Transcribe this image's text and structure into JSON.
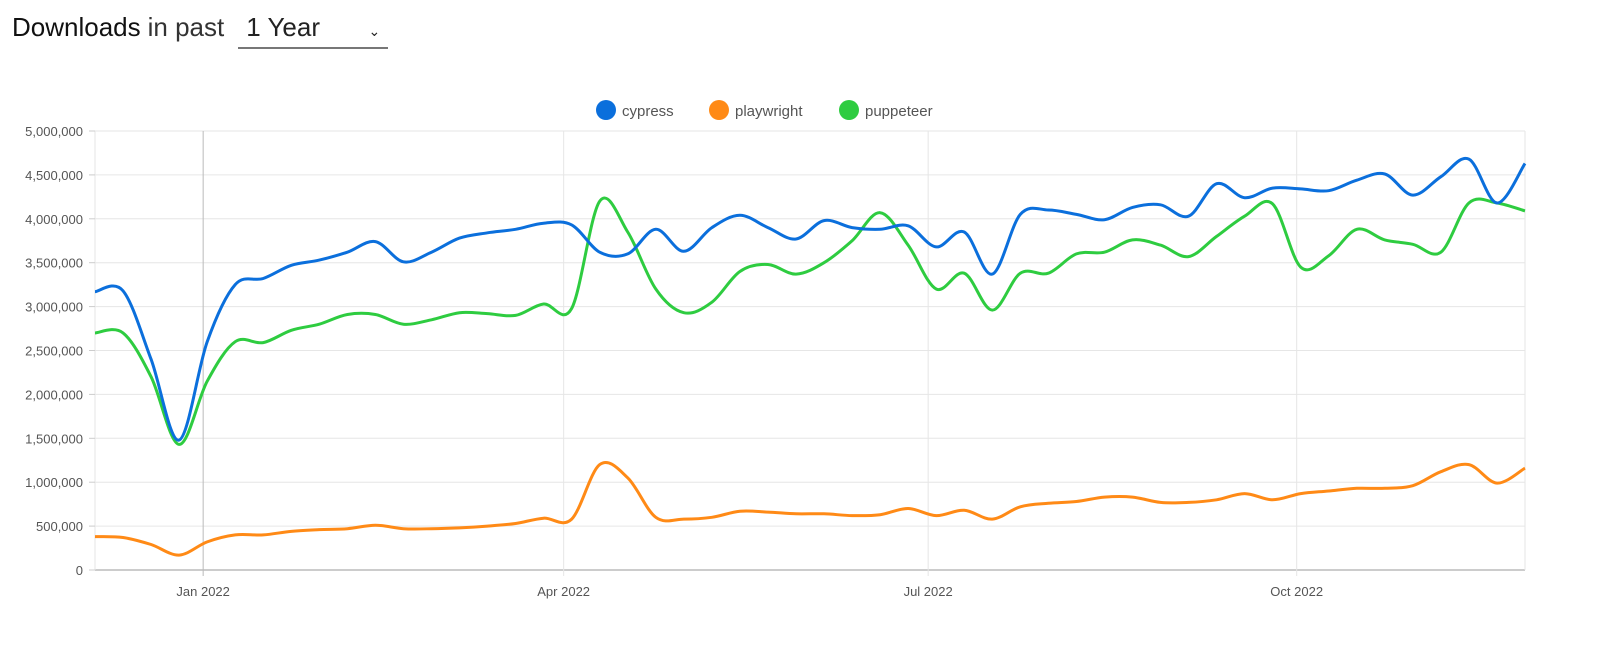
{
  "header": {
    "title": "Downloads",
    "subtitle": "in past",
    "period_selected": "1 Year",
    "chevron_icon": "chevron-down-icon"
  },
  "chart_data": {
    "type": "line",
    "title": "",
    "xlabel": "",
    "ylabel": "",
    "ylim": [
      0,
      5000000
    ],
    "yticks": [
      0,
      500000,
      1000000,
      1500000,
      2000000,
      2500000,
      3000000,
      3500000,
      4000000,
      4500000,
      5000000
    ],
    "ytick_labels": [
      "0",
      "500,000",
      "1,000,000",
      "1,500,000",
      "2,000,000",
      "2,500,000",
      "3,000,000",
      "3,500,000",
      "4,000,000",
      "4,500,000",
      "5,000,000"
    ],
    "xlim": [
      "2021-12-05",
      "2022-11-27"
    ],
    "xticks": [
      "2022-01-01",
      "2022-04-01",
      "2022-07-01",
      "2022-10-01"
    ],
    "xtick_labels": [
      "Jan 2022",
      "Apr 2022",
      "Jul 2022",
      "Oct 2022"
    ],
    "grid": true,
    "legend_position": "top-center",
    "x": [
      "2021-12-05",
      "2021-12-12",
      "2021-12-19",
      "2021-12-26",
      "2022-01-02",
      "2022-01-09",
      "2022-01-16",
      "2022-01-23",
      "2022-01-30",
      "2022-02-06",
      "2022-02-13",
      "2022-02-20",
      "2022-02-27",
      "2022-03-06",
      "2022-03-13",
      "2022-03-20",
      "2022-03-27",
      "2022-04-03",
      "2022-04-10",
      "2022-04-17",
      "2022-04-24",
      "2022-05-01",
      "2022-05-08",
      "2022-05-15",
      "2022-05-22",
      "2022-05-29",
      "2022-06-05",
      "2022-06-12",
      "2022-06-19",
      "2022-06-26",
      "2022-07-03",
      "2022-07-10",
      "2022-07-17",
      "2022-07-24",
      "2022-07-31",
      "2022-08-07",
      "2022-08-14",
      "2022-08-21",
      "2022-08-28",
      "2022-09-04",
      "2022-09-11",
      "2022-09-18",
      "2022-09-25",
      "2022-10-02",
      "2022-10-09",
      "2022-10-16",
      "2022-10-23",
      "2022-10-30",
      "2022-11-06",
      "2022-11-13",
      "2022-11-20",
      "2022-11-27"
    ],
    "series": [
      {
        "name": "cypress",
        "color": "#0b6fdc",
        "values": [
          3170000,
          3180000,
          2400000,
          1480000,
          2600000,
          3250000,
          3320000,
          3470000,
          3530000,
          3620000,
          3740000,
          3510000,
          3620000,
          3780000,
          3840000,
          3880000,
          3950000,
          3930000,
          3620000,
          3600000,
          3880000,
          3630000,
          3900000,
          4040000,
          3900000,
          3770000,
          3980000,
          3900000,
          3880000,
          3920000,
          3680000,
          3850000,
          3370000,
          4050000,
          4100000,
          4050000,
          3990000,
          4130000,
          4160000,
          4030000,
          4400000,
          4240000,
          4350000,
          4340000,
          4320000,
          4440000,
          4510000,
          4270000,
          4480000,
          4680000,
          4180000,
          4630000
        ]
      },
      {
        "name": "playwright",
        "color": "#ff8a16",
        "values": [
          380000,
          370000,
          290000,
          170000,
          320000,
          400000,
          400000,
          440000,
          460000,
          470000,
          510000,
          470000,
          470000,
          480000,
          500000,
          530000,
          590000,
          580000,
          1200000,
          1050000,
          600000,
          580000,
          600000,
          670000,
          660000,
          640000,
          640000,
          620000,
          630000,
          700000,
          620000,
          680000,
          580000,
          720000,
          760000,
          780000,
          830000,
          830000,
          770000,
          770000,
          800000,
          870000,
          800000,
          870000,
          900000,
          930000,
          930000,
          960000,
          1120000,
          1200000,
          990000,
          1160000
        ]
      },
      {
        "name": "puppeteer",
        "color": "#2ecc40",
        "values": [
          2700000,
          2700000,
          2200000,
          1430000,
          2150000,
          2600000,
          2590000,
          2730000,
          2800000,
          2910000,
          2910000,
          2800000,
          2850000,
          2930000,
          2920000,
          2900000,
          3030000,
          2980000,
          4200000,
          3850000,
          3200000,
          2930000,
          3050000,
          3400000,
          3480000,
          3370000,
          3500000,
          3750000,
          4070000,
          3700000,
          3200000,
          3380000,
          2960000,
          3380000,
          3380000,
          3600000,
          3620000,
          3760000,
          3700000,
          3570000,
          3800000,
          4030000,
          4170000,
          3450000,
          3580000,
          3880000,
          3760000,
          3710000,
          3620000,
          4180000,
          4180000,
          4090000
        ]
      }
    ]
  }
}
